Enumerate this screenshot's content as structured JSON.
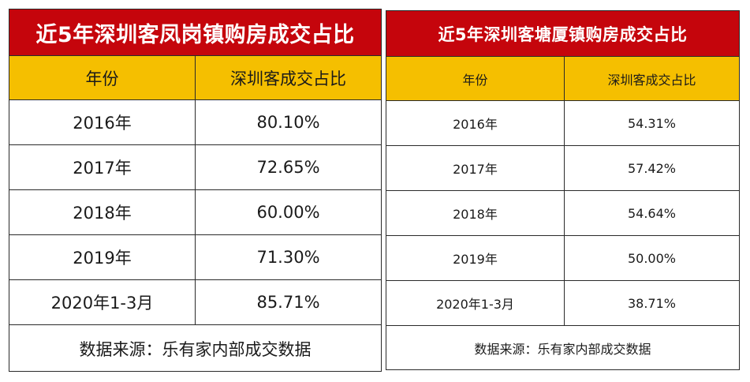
{
  "left_table": {
    "title": "近5年深圳客凤岗镇购房成交占比",
    "headers": [
      "年份",
      "深圳客成交占比"
    ],
    "rows": [
      [
        "2016年",
        "80.10%"
      ],
      [
        "2017年",
        "72.65%"
      ],
      [
        "2018年",
        "60.00%"
      ],
      [
        "2019年",
        "71.30%"
      ],
      [
        "2020年1-3月",
        "85.71%"
      ]
    ],
    "footer": "数据来源：乐有家内部成交数据"
  },
  "right_table": {
    "title": "近5年深圳客塘厦镇购房成交占比",
    "headers": [
      "年份",
      "深圳客成交占比"
    ],
    "rows": [
      [
        "2016年",
        "54.31%"
      ],
      [
        "2017年",
        "57.42%"
      ],
      [
        "2018年",
        "54.64%"
      ],
      [
        "2019年",
        "50.00%"
      ],
      [
        "2020年1-3月",
        "38.71%"
      ]
    ],
    "footer": "数据来源：乐有家内部成交数据"
  },
  "colors": {
    "title_bg": "#c5050c",
    "header_bg": "#f5bf00",
    "border": "#2a2a2a"
  }
}
